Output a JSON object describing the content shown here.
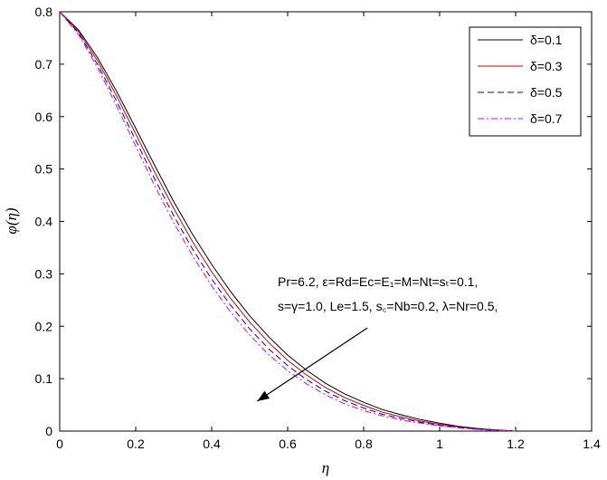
{
  "chart_data": {
    "type": "line",
    "xlabel": "η",
    "ylabel": "φ(η)",
    "xlim": [
      0,
      1.4
    ],
    "ylim": [
      0,
      0.8
    ],
    "xticks": [
      "0",
      "0.2",
      "0.4",
      "0.6",
      "0.8",
      "1",
      "1.2",
      "1.4"
    ],
    "yticks": [
      "0",
      "0.1",
      "0.2",
      "0.3",
      "0.4",
      "0.5",
      "0.6",
      "0.7",
      "0.8"
    ],
    "grid": false,
    "legend_position": "top-right",
    "x": [
      0,
      0.05,
      0.1,
      0.15,
      0.2,
      0.25,
      0.3,
      0.35,
      0.4,
      0.45,
      0.5,
      0.55,
      0.6,
      0.65,
      0.7,
      0.75,
      0.8,
      0.85,
      0.9,
      0.95,
      1.0,
      1.05,
      1.1,
      1.15,
      1.2
    ],
    "series": [
      {
        "name": "δ=0.1",
        "color": "#000000",
        "dash": "solid",
        "values": [
          0.8,
          0.765,
          0.712,
          0.648,
          0.578,
          0.507,
          0.438,
          0.375,
          0.318,
          0.266,
          0.22,
          0.18,
          0.145,
          0.116,
          0.091,
          0.071,
          0.055,
          0.041,
          0.031,
          0.022,
          0.015,
          0.009,
          0.005,
          0.002,
          0.0
        ]
      },
      {
        "name": "δ=0.3",
        "color": "#d40000",
        "dash": "solid",
        "values": [
          0.8,
          0.762,
          0.706,
          0.639,
          0.567,
          0.494,
          0.425,
          0.361,
          0.304,
          0.253,
          0.208,
          0.169,
          0.135,
          0.107,
          0.083,
          0.064,
          0.049,
          0.036,
          0.027,
          0.019,
          0.013,
          0.008,
          0.004,
          0.002,
          0.0
        ]
      },
      {
        "name": "δ=0.5",
        "color": "#0000cc",
        "dash": "dash",
        "values": [
          0.8,
          0.759,
          0.699,
          0.629,
          0.555,
          0.481,
          0.411,
          0.347,
          0.29,
          0.24,
          0.195,
          0.157,
          0.125,
          0.098,
          0.076,
          0.058,
          0.044,
          0.032,
          0.024,
          0.017,
          0.011,
          0.007,
          0.004,
          0.002,
          0.0
        ]
      },
      {
        "name": "δ=0.7",
        "color": "#e000e0",
        "dash": "dashdot",
        "values": [
          0.8,
          0.756,
          0.693,
          0.62,
          0.544,
          0.468,
          0.398,
          0.334,
          0.277,
          0.227,
          0.183,
          0.146,
          0.115,
          0.09,
          0.069,
          0.052,
          0.039,
          0.029,
          0.021,
          0.015,
          0.01,
          0.006,
          0.003,
          0.001,
          0.0
        ]
      }
    ],
    "annotation": {
      "lines": [
        "Pr=6.2, ε=Rd=Ec=E₁=M=Nt=sₜ=0.1,",
        "s=γ=1.0, Le=1.5, s꜀=Nb=0.2, λ=Nr=0.5,"
      ],
      "arrow_from": [
        0.81,
        0.197
      ],
      "arrow_to": [
        0.52,
        0.057
      ]
    }
  }
}
